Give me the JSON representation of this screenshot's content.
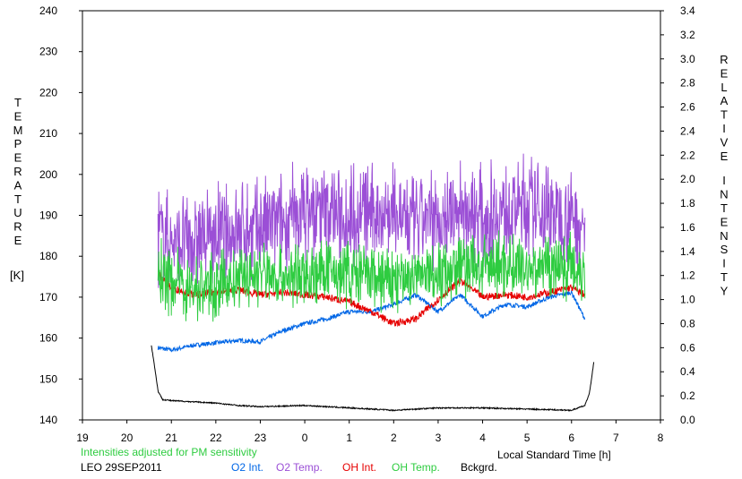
{
  "chart_data": {
    "type": "line",
    "station": "LEO 29SEP2011",
    "note": "Intensities adjusted for PM sensitivity",
    "xlabel": "Local Standard Time [h]",
    "ylabel_left_letters": [
      "T",
      "E",
      "M",
      "P",
      "E",
      "R",
      "A",
      "T",
      "U",
      "R",
      "E"
    ],
    "ylabel_left_unit": "[K]",
    "ylabel_right_words": [
      [
        "R",
        "E",
        "L",
        "A",
        "T",
        "I",
        "V",
        "E"
      ],
      [
        "I",
        "N",
        "T",
        "E",
        "N",
        "S",
        "I",
        "T",
        "Y"
      ]
    ],
    "xlim": [
      19,
      32
    ],
    "xticks": [
      19,
      20,
      21,
      22,
      23,
      24,
      25,
      26,
      27,
      28,
      29,
      30,
      31,
      32
    ],
    "xtick_labels": [
      "19",
      "20",
      "21",
      "22",
      "23",
      "0",
      "1",
      "2",
      "3",
      "4",
      "5",
      "6",
      "7",
      "8"
    ],
    "ylim_left": [
      140,
      240
    ],
    "yticks_left": [
      140,
      150,
      160,
      170,
      180,
      190,
      200,
      210,
      220,
      230,
      240
    ],
    "ylim_right": [
      0.0,
      3.4
    ],
    "yticks_right": [
      "0.0",
      "0.2",
      "0.4",
      "0.6",
      "0.8",
      "1.0",
      "1.2",
      "1.4",
      "1.6",
      "1.8",
      "2.0",
      "2.2",
      "2.4",
      "2.6",
      "2.8",
      "3.0",
      "3.2",
      "3.4"
    ],
    "grid": false,
    "legend_position": "bottom",
    "series": [
      {
        "name": "O2 Int.",
        "axis": "right",
        "color": "#0066e6",
        "x": [
          20.7,
          21.0,
          21.5,
          22.0,
          22.5,
          23.0,
          23.5,
          24.0,
          24.5,
          25.0,
          25.5,
          26.0,
          26.5,
          27.0,
          27.5,
          28.0,
          28.5,
          29.0,
          29.5,
          30.0,
          30.3
        ],
        "y": [
          0.6,
          0.58,
          0.62,
          0.64,
          0.66,
          0.65,
          0.74,
          0.8,
          0.84,
          0.9,
          0.9,
          0.96,
          1.04,
          0.9,
          1.04,
          0.86,
          0.96,
          0.94,
          1.02,
          1.06,
          0.84
        ]
      },
      {
        "name": "O2 Temp.",
        "axis": "left",
        "color": "#9b4fd6",
        "x": [
          20.7,
          21.0,
          21.5,
          22.0,
          22.5,
          23.0,
          23.5,
          24.0,
          24.5,
          25.0,
          25.5,
          26.0,
          26.5,
          27.0,
          27.5,
          28.0,
          28.5,
          29.0,
          29.5,
          30.0,
          30.3
        ],
        "y": [
          186,
          183,
          184,
          185,
          186,
          187,
          188,
          191,
          191,
          190,
          191,
          190,
          188,
          189,
          191,
          190,
          191,
          192,
          191,
          190,
          186
        ]
      },
      {
        "name": "OH Int.",
        "axis": "right",
        "color": "#e60000",
        "x": [
          20.7,
          21.0,
          21.5,
          22.0,
          22.5,
          23.0,
          23.5,
          24.0,
          24.5,
          25.0,
          25.5,
          26.0,
          26.5,
          27.0,
          27.5,
          28.0,
          28.5,
          29.0,
          29.5,
          30.0,
          30.3
        ],
        "y": [
          1.22,
          1.1,
          1.04,
          1.06,
          1.08,
          1.04,
          1.06,
          1.04,
          1.02,
          0.98,
          0.9,
          0.8,
          0.84,
          1.0,
          1.16,
          1.02,
          1.04,
          1.02,
          1.06,
          1.1,
          1.04
        ]
      },
      {
        "name": "OH Temp.",
        "axis": "left",
        "color": "#2ecc40",
        "x": [
          20.7,
          21.0,
          21.5,
          22.0,
          22.5,
          23.0,
          23.5,
          24.0,
          24.5,
          25.0,
          25.5,
          26.0,
          26.5,
          27.0,
          27.5,
          28.0,
          28.5,
          29.0,
          29.5,
          30.0,
          30.3
        ],
        "y": [
          176,
          174,
          172,
          173,
          174,
          176,
          175,
          175,
          176,
          176,
          175,
          174,
          175,
          176,
          178,
          177,
          178,
          177,
          178,
          178,
          176
        ]
      },
      {
        "name": "Bckgrd.",
        "axis": "right",
        "color": "#000000",
        "x": [
          20.55,
          20.62,
          20.7,
          20.8,
          21.0,
          21.5,
          22.0,
          22.5,
          23.0,
          24.0,
          25.0,
          26.0,
          27.0,
          28.0,
          29.0,
          30.0,
          30.3,
          30.4,
          30.45,
          30.5
        ],
        "y": [
          0.62,
          0.45,
          0.24,
          0.17,
          0.16,
          0.15,
          0.14,
          0.12,
          0.11,
          0.12,
          0.1,
          0.08,
          0.1,
          0.1,
          0.09,
          0.08,
          0.12,
          0.22,
          0.34,
          0.48
        ]
      }
    ]
  }
}
